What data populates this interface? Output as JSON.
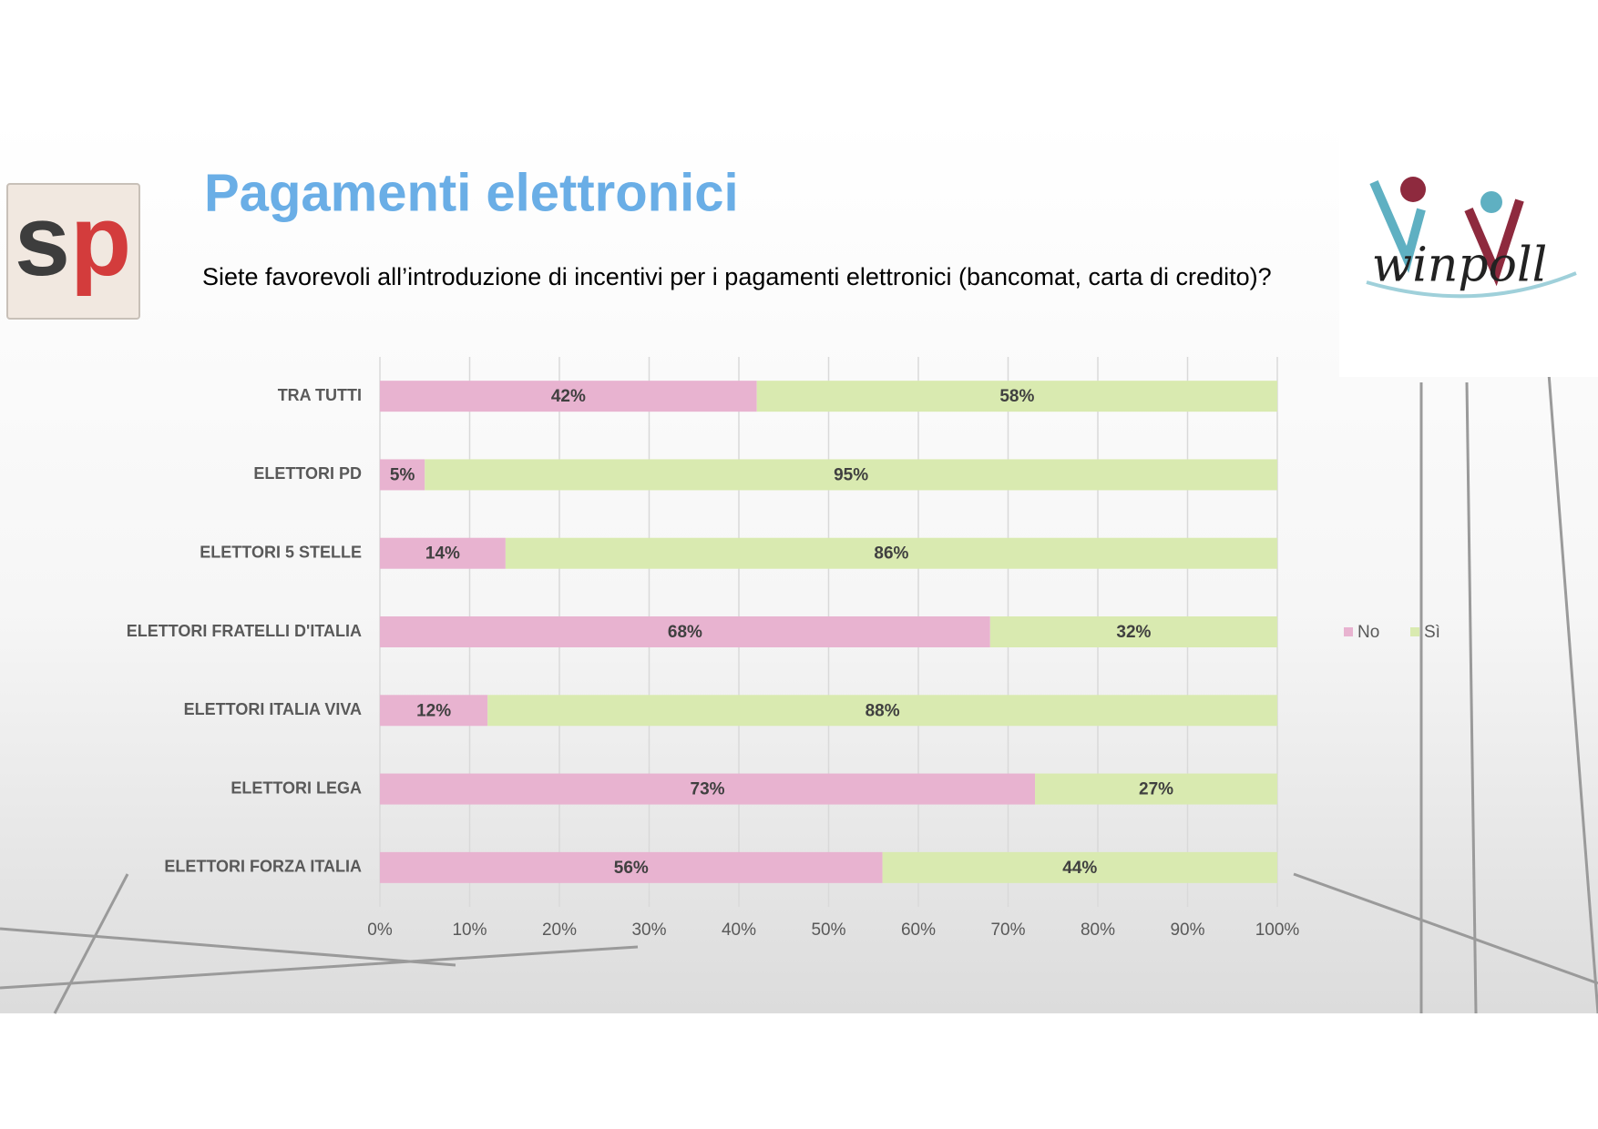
{
  "logos": [
    "sp",
    "winpoll"
  ],
  "chart_data": {
    "type": "stacked-barh",
    "title": "Pagamenti elettronici",
    "subtitle": "Siete favorevoli all’introduzione di incentivi per i pagamenti elettronici (bancomat, carta di credito)?",
    "categories": [
      "TRA TUTTI",
      "ELETTORI PD",
      "ELETTORI 5 STELLE",
      "ELETTORI FRATELLI D'ITALIA",
      "ELETTORI ITALIA VIVA",
      "ELETTORI LEGA",
      "ELETTORI FORZA ITALIA"
    ],
    "series": [
      {
        "name": "No",
        "color": "#e8b3d0",
        "values": [
          42,
          5,
          14,
          68,
          12,
          73,
          56
        ],
        "value_labels": [
          "42%",
          "5%",
          "14%",
          "68%",
          "12%",
          "73%",
          "56%"
        ]
      },
      {
        "name": "Sì",
        "color": "#d9eab0",
        "values": [
          58,
          95,
          86,
          32,
          88,
          27,
          44
        ],
        "value_labels": [
          "58%",
          "95%",
          "86%",
          "32%",
          "88%",
          "27%",
          "44%"
        ]
      }
    ],
    "xlim": [
      0,
      100
    ],
    "xticks": [
      {
        "value": 0,
        "label": "0%"
      },
      {
        "value": 10,
        "label": "10%"
      },
      {
        "value": 20,
        "label": "20%"
      },
      {
        "value": 30,
        "label": "30%"
      },
      {
        "value": 40,
        "label": "40%"
      },
      {
        "value": 50,
        "label": "50%"
      },
      {
        "value": 60,
        "label": "60%"
      },
      {
        "value": 70,
        "label": "70%"
      },
      {
        "value": 80,
        "label": "80%"
      },
      {
        "value": 90,
        "label": "90%"
      },
      {
        "value": 100,
        "label": "100%"
      }
    ],
    "grid": true,
    "legend": "right"
  }
}
